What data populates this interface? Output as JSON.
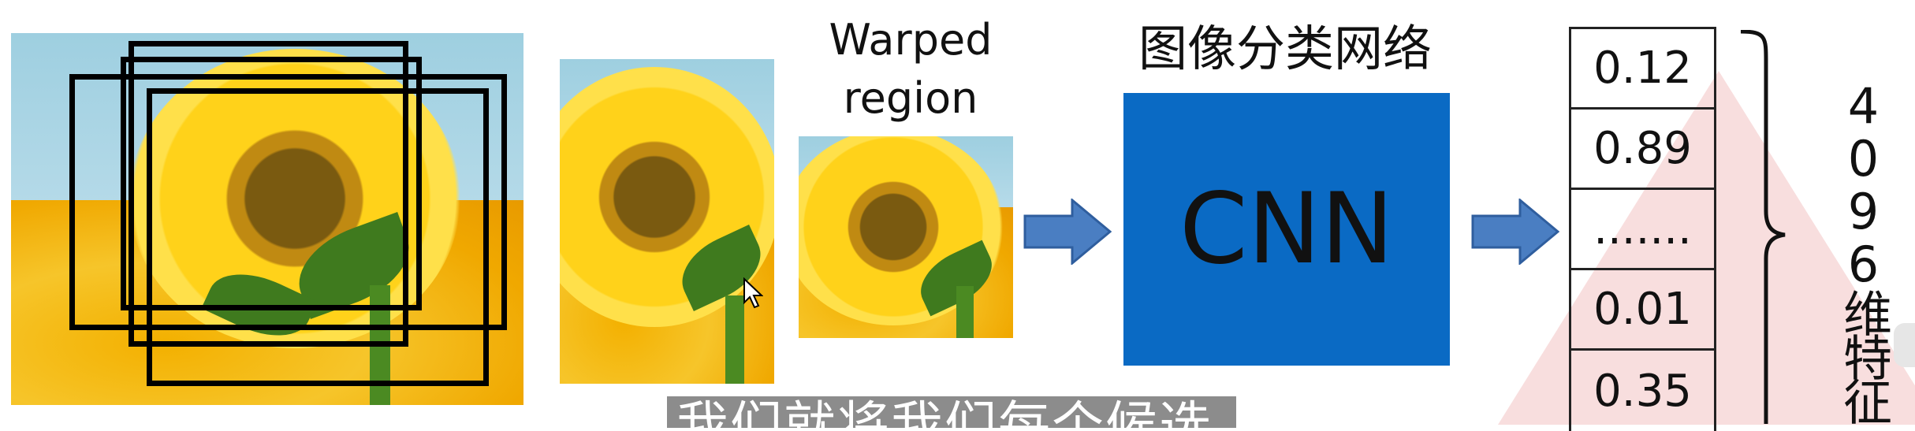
{
  "labels": {
    "warped_line1": "Warped",
    "warped_line2": "region",
    "classifier_title": "图像分类网络",
    "cnn": "CNN",
    "feature_dim": "4096维特征"
  },
  "feature_vector": [
    "0.12",
    "0.89",
    ".......",
    "0.01",
    "0.35"
  ],
  "subtitle": "我们就将我们每个候选框",
  "colors": {
    "cnn_box": "#0a6ac4",
    "arrow": "#4a7ec2",
    "subtitle_bg": "#8c8c8c",
    "watermark": "#f6d6d6"
  },
  "icons": {
    "arrow": "right-arrow-icon",
    "brace": "curly-brace-icon",
    "cursor": "mouse-cursor-icon"
  }
}
